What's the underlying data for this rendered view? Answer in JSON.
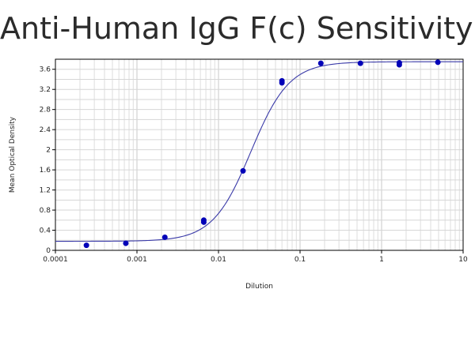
{
  "chart_data": {
    "type": "scatter",
    "title": "Anti-Human IgG F(c) Sensitivity",
    "xlabel": "Dilution",
    "ylabel": "Mean Optical Density",
    "xscale": "log",
    "xlim": [
      0.0001,
      10
    ],
    "ylim": [
      0,
      3.8
    ],
    "grid": true,
    "x_tick_labels": [
      "0.0001",
      "0.001",
      "0.01",
      "0.1",
      "1",
      "10"
    ],
    "y_tick_labels": [
      "0",
      "0.4",
      "0.8",
      "1.2",
      "1.6",
      "2",
      "2.4",
      "2.8",
      "3.2",
      "3.6"
    ],
    "series": [
      {
        "points": [
          {
            "x": 0.00024,
            "y": 0.1
          },
          {
            "x": 0.00073,
            "y": 0.14
          },
          {
            "x": 0.0022,
            "y": 0.26
          },
          {
            "x": 0.0066,
            "y": 0.56
          },
          {
            "x": 0.0066,
            "y": 0.6
          },
          {
            "x": 0.02,
            "y": 1.58
          },
          {
            "x": 0.06,
            "y": 3.33
          },
          {
            "x": 0.06,
            "y": 3.37
          },
          {
            "x": 0.18,
            "y": 3.72
          },
          {
            "x": 0.55,
            "y": 3.72
          },
          {
            "x": 1.65,
            "y": 3.69
          },
          {
            "x": 1.65,
            "y": 3.73
          },
          {
            "x": 4.9,
            "y": 3.74
          }
        ],
        "color": "#0000b8"
      }
    ],
    "fit_curve": {
      "type": "4PL",
      "min": 0.18,
      "max": 3.75,
      "ec50": 0.025,
      "hill": 1.85,
      "color": "#3a3aa8"
    }
  }
}
